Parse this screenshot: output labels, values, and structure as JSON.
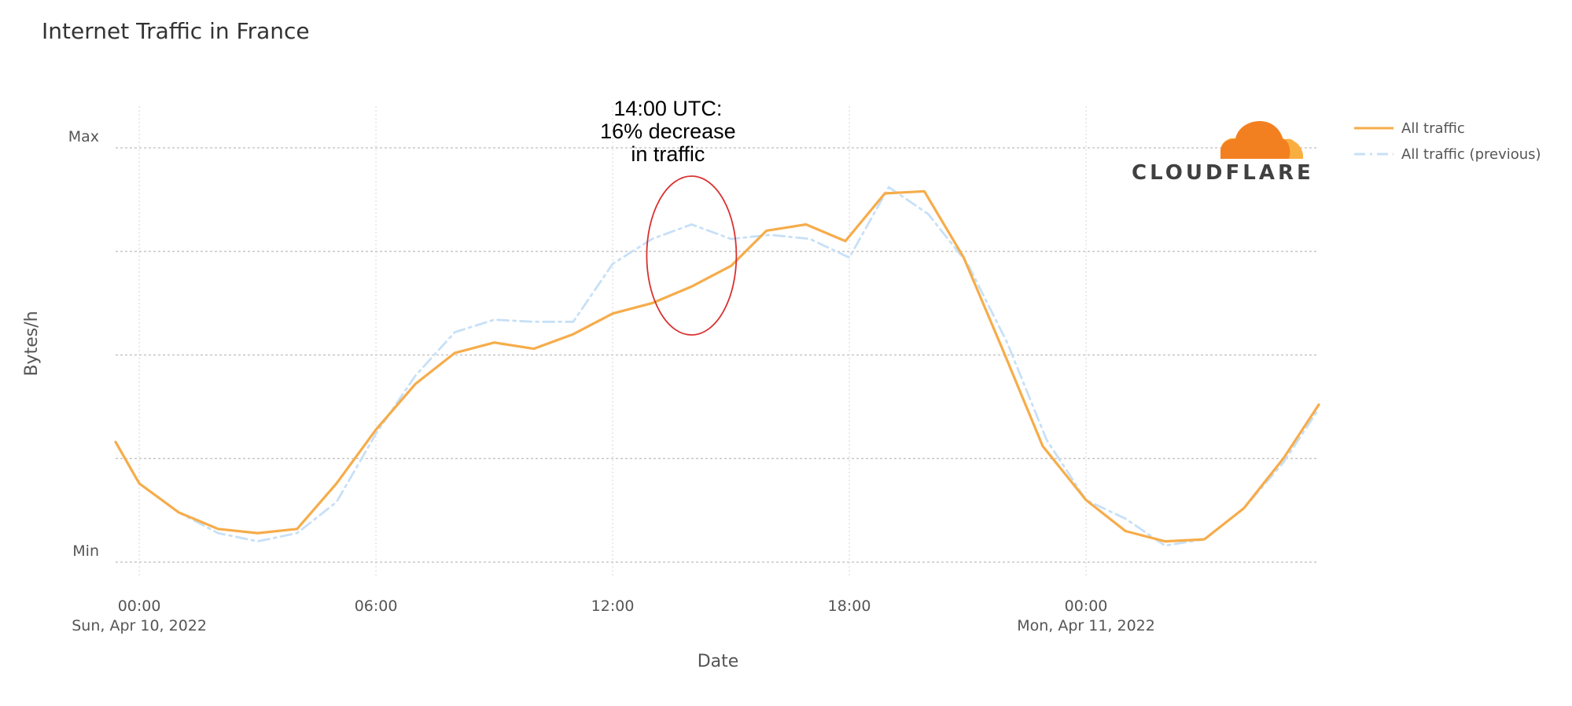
{
  "chart_data": {
    "type": "line",
    "title": "Internet Traffic in France",
    "xlabel": "Date",
    "ylabel": "Bytes/h",
    "x_ticks": [
      {
        "hour": 0,
        "line1": "00:00",
        "line2": "Sun, Apr 10, 2022"
      },
      {
        "hour": 6,
        "line1": "06:00",
        "line2": ""
      },
      {
        "hour": 12,
        "line1": "12:00",
        "line2": ""
      },
      {
        "hour": 18,
        "line1": "18:00",
        "line2": ""
      },
      {
        "hour": 24,
        "line1": "00:00",
        "line2": "Mon, Apr 11, 2022"
      }
    ],
    "y_ticks": [
      {
        "value": 0,
        "label": "Min"
      },
      {
        "value": 1,
        "label": "Max"
      }
    ],
    "xlim": [
      -0.6,
      29.9
    ],
    "ylim": [
      0,
      1
    ],
    "y_grid": [
      0,
      0.25,
      0.5,
      0.75,
      1
    ],
    "grid": true,
    "legend_position": "top-right",
    "series": [
      {
        "name": "All traffic",
        "color": "#f6ac4a",
        "style": "solid",
        "x": [
          -0.6,
          0,
          1,
          2,
          3,
          4,
          5,
          6,
          7,
          8,
          9,
          10,
          11,
          12,
          13,
          14,
          15,
          15.9,
          16.9,
          17.9,
          18.9,
          19.9,
          20.9,
          21.9,
          22.9,
          24,
          25,
          26,
          27,
          28,
          29,
          29.9
        ],
        "y": [
          0.29,
          0.19,
          0.12,
          0.08,
          0.07,
          0.08,
          0.19,
          0.32,
          0.43,
          0.505,
          0.53,
          0.515,
          0.55,
          0.6,
          0.625,
          0.665,
          0.715,
          0.8,
          0.815,
          0.775,
          0.89,
          0.895,
          0.735,
          0.51,
          0.28,
          0.15,
          0.075,
          0.05,
          0.055,
          0.13,
          0.25,
          0.38
        ]
      },
      {
        "name": "All traffic (previous)",
        "color": "#c7e0f7",
        "style": "dashdot",
        "x": [
          -0.6,
          0,
          1,
          2,
          3,
          4,
          5,
          6,
          7,
          8,
          9,
          10,
          11,
          12,
          13,
          14,
          15,
          16,
          17,
          18,
          19,
          20,
          21,
          22,
          23,
          24,
          25,
          26,
          27,
          28,
          29,
          29.9
        ],
        "y": [
          0.29,
          0.19,
          0.12,
          0.07,
          0.05,
          0.07,
          0.145,
          0.31,
          0.45,
          0.555,
          0.585,
          0.58,
          0.58,
          0.72,
          0.78,
          0.815,
          0.78,
          0.79,
          0.78,
          0.735,
          0.905,
          0.84,
          0.72,
          0.53,
          0.295,
          0.15,
          0.105,
          0.04,
          0.055,
          0.13,
          0.24,
          0.37
        ]
      }
    ],
    "annotations": [
      {
        "x": 14,
        "y": 0.74,
        "lines": [
          "14:00 UTC:",
          "16% decrease",
          "in traffic"
        ]
      }
    ]
  },
  "logo": {
    "text": "CLOUDFLARE"
  }
}
